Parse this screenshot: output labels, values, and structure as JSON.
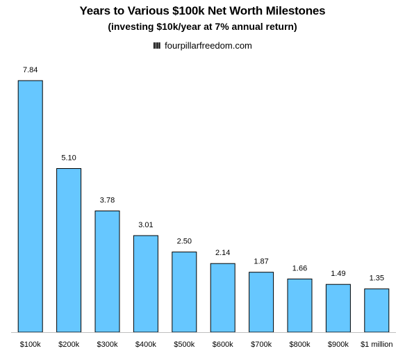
{
  "chart_data": {
    "type": "bar",
    "title": "Years to Various $100k Net Worth Milestones",
    "subtitle": "(investing $10k/year at 7% annual return)",
    "source_mark": "IIII",
    "source": "fourpillarfreedom.com",
    "categories": [
      "$100k",
      "$200k",
      "$300k",
      "$400k",
      "$500k",
      "$600k",
      "$700k",
      "$800k",
      "$900k",
      "$1 million"
    ],
    "values": [
      7.84,
      5.1,
      3.78,
      3.01,
      2.5,
      2.14,
      1.87,
      1.66,
      1.49,
      1.35
    ],
    "value_labels": [
      "7.84",
      "5.10",
      "3.78",
      "3.01",
      "2.50",
      "2.14",
      "1.87",
      "1.66",
      "1.49",
      "1.35"
    ],
    "xlabel": "",
    "ylabel": "",
    "ylim": [
      0,
      7.84
    ],
    "grid": false,
    "bar_color": "#66c7ff"
  }
}
